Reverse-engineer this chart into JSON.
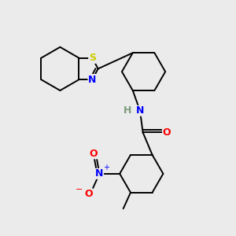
{
  "background_color": "#ebebeb",
  "bond_color": "#000000",
  "bond_lw": 1.4,
  "dbo": 0.032,
  "S_color": "#cccc00",
  "N_color": "#0000ff",
  "O_color": "#ff0000",
  "H_color": "#7a9a7a",
  "ring_r": 0.3,
  "xlim": [
    0.0,
    3.2
  ],
  "ylim": [
    0.0,
    3.0
  ]
}
